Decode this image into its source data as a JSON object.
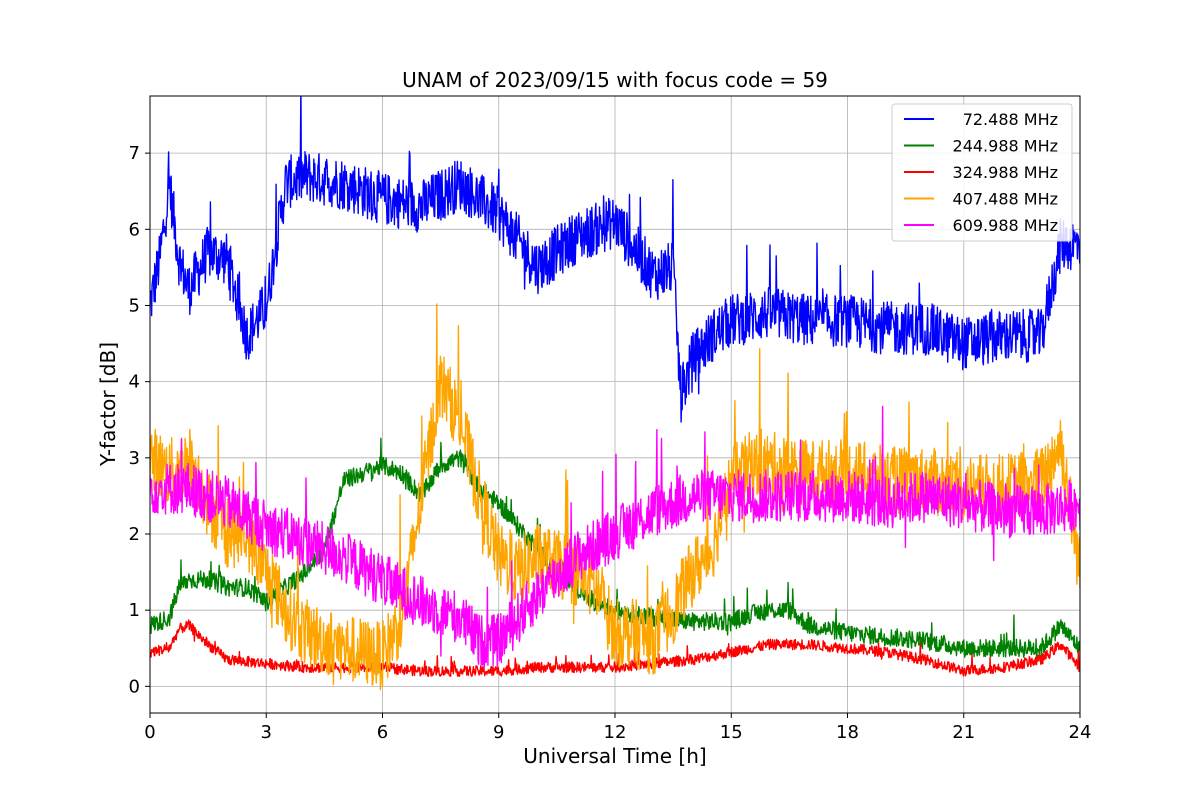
{
  "chart_data": {
    "type": "line",
    "title": "UNAM of 2023/09/15 with focus code = 59",
    "xlabel": "Universal Time [h]",
    "ylabel": "Y-factor [dB]",
    "xlim": [
      0,
      24
    ],
    "ylim": [
      -0.35,
      7.75
    ],
    "xticks": [
      0,
      3,
      6,
      9,
      12,
      15,
      18,
      21,
      24
    ],
    "yticks": [
      0,
      1,
      2,
      3,
      4,
      5,
      6,
      7
    ],
    "grid": true,
    "legend_position": "top-right",
    "series": [
      {
        "name": "72.488 MHz",
        "color": "#0000ff",
        "x": [
          0,
          0.25,
          0.5,
          0.75,
          1,
          1.5,
          2,
          2.5,
          3,
          3.5,
          4,
          5,
          6,
          7,
          8,
          9,
          10,
          11,
          12,
          13,
          13.5,
          13.7,
          14,
          14.5,
          15,
          16,
          17,
          18,
          19,
          20,
          21,
          22,
          23,
          23.5,
          24
        ],
        "y": [
          5.0,
          5.6,
          6.6,
          5.6,
          5.2,
          5.7,
          5.6,
          4.6,
          5.0,
          6.6,
          6.7,
          6.6,
          6.4,
          6.3,
          6.6,
          6.2,
          5.5,
          5.9,
          6.1,
          5.4,
          5.5,
          3.8,
          4.3,
          4.6,
          4.8,
          4.9,
          4.8,
          4.8,
          4.7,
          4.7,
          4.5,
          4.6,
          4.6,
          5.8,
          5.8
        ],
        "noise": 0.35
      },
      {
        "name": "244.988 MHz",
        "color": "#008000",
        "x": [
          0,
          0.5,
          0.75,
          1,
          1.5,
          2,
          2.5,
          3,
          3.5,
          4,
          4.5,
          5,
          5.5,
          6,
          6.5,
          7,
          7.5,
          8,
          8.5,
          9,
          9.5,
          10,
          10.5,
          11,
          11.5,
          12,
          13,
          14,
          15,
          15.5,
          16,
          16.5,
          17,
          18,
          19,
          20,
          21,
          22,
          23,
          23.5,
          24
        ],
        "y": [
          0.8,
          0.9,
          1.3,
          1.4,
          1.4,
          1.3,
          1.3,
          1.1,
          1.3,
          1.5,
          1.8,
          2.7,
          2.8,
          2.9,
          2.8,
          2.5,
          2.9,
          3.0,
          2.6,
          2.4,
          2.1,
          1.8,
          1.5,
          1.3,
          1.1,
          1.0,
          0.9,
          0.85,
          0.85,
          0.95,
          1.0,
          1.0,
          0.8,
          0.7,
          0.65,
          0.6,
          0.5,
          0.5,
          0.5,
          0.8,
          0.5
        ],
        "noise": 0.12
      },
      {
        "name": "324.988 MHz",
        "color": "#ff0000",
        "x": [
          0,
          0.5,
          0.75,
          1,
          1.5,
          2,
          3,
          4,
          5,
          6,
          7,
          8,
          9,
          10,
          11,
          12,
          13,
          14,
          15,
          16,
          17,
          18,
          19,
          20,
          21,
          22,
          23,
          23.5,
          24
        ],
        "y": [
          0.45,
          0.5,
          0.75,
          0.8,
          0.55,
          0.35,
          0.3,
          0.25,
          0.25,
          0.25,
          0.2,
          0.2,
          0.2,
          0.25,
          0.25,
          0.25,
          0.3,
          0.35,
          0.45,
          0.55,
          0.55,
          0.5,
          0.45,
          0.35,
          0.2,
          0.25,
          0.35,
          0.55,
          0.25
        ],
        "noise": 0.07
      },
      {
        "name": "407.488 MHz",
        "color": "#ffa500",
        "x": [
          0,
          0.5,
          1,
          1.5,
          2,
          2.5,
          3,
          3.5,
          4,
          5,
          6,
          6.5,
          7,
          7.5,
          8,
          8.5,
          9,
          9.5,
          10,
          11,
          11.5,
          12,
          12.5,
          13,
          13.5,
          14,
          14.5,
          15,
          15.5,
          16,
          17,
          18,
          19,
          20,
          21,
          22,
          23,
          23.5,
          24
        ],
        "y": [
          3.0,
          2.8,
          3.0,
          2.4,
          2.0,
          2.0,
          1.5,
          1.0,
          0.7,
          0.5,
          0.4,
          0.9,
          2.5,
          4.0,
          3.5,
          2.5,
          1.7,
          1.5,
          1.7,
          1.5,
          1.3,
          0.7,
          0.7,
          0.6,
          1.0,
          1.5,
          1.8,
          2.7,
          2.9,
          2.9,
          2.8,
          2.8,
          2.7,
          2.7,
          2.6,
          2.6,
          2.7,
          3.2,
          1.5
        ],
        "noise": 0.45
      },
      {
        "name": "609.988 MHz",
        "color": "#ff00ff",
        "x": [
          0,
          1,
          2,
          3,
          4,
          5,
          6,
          7,
          8,
          8.5,
          9,
          10,
          11,
          12,
          13,
          14,
          15,
          16,
          17,
          18,
          19,
          20,
          21,
          22,
          23,
          24
        ],
        "y": [
          2.6,
          2.6,
          2.4,
          2.1,
          1.9,
          1.7,
          1.4,
          1.1,
          0.9,
          0.6,
          0.6,
          1.2,
          1.7,
          2.0,
          2.3,
          2.5,
          2.5,
          2.5,
          2.5,
          2.5,
          2.4,
          2.5,
          2.4,
          2.3,
          2.3,
          2.4
        ],
        "noise": 0.35
      }
    ]
  }
}
